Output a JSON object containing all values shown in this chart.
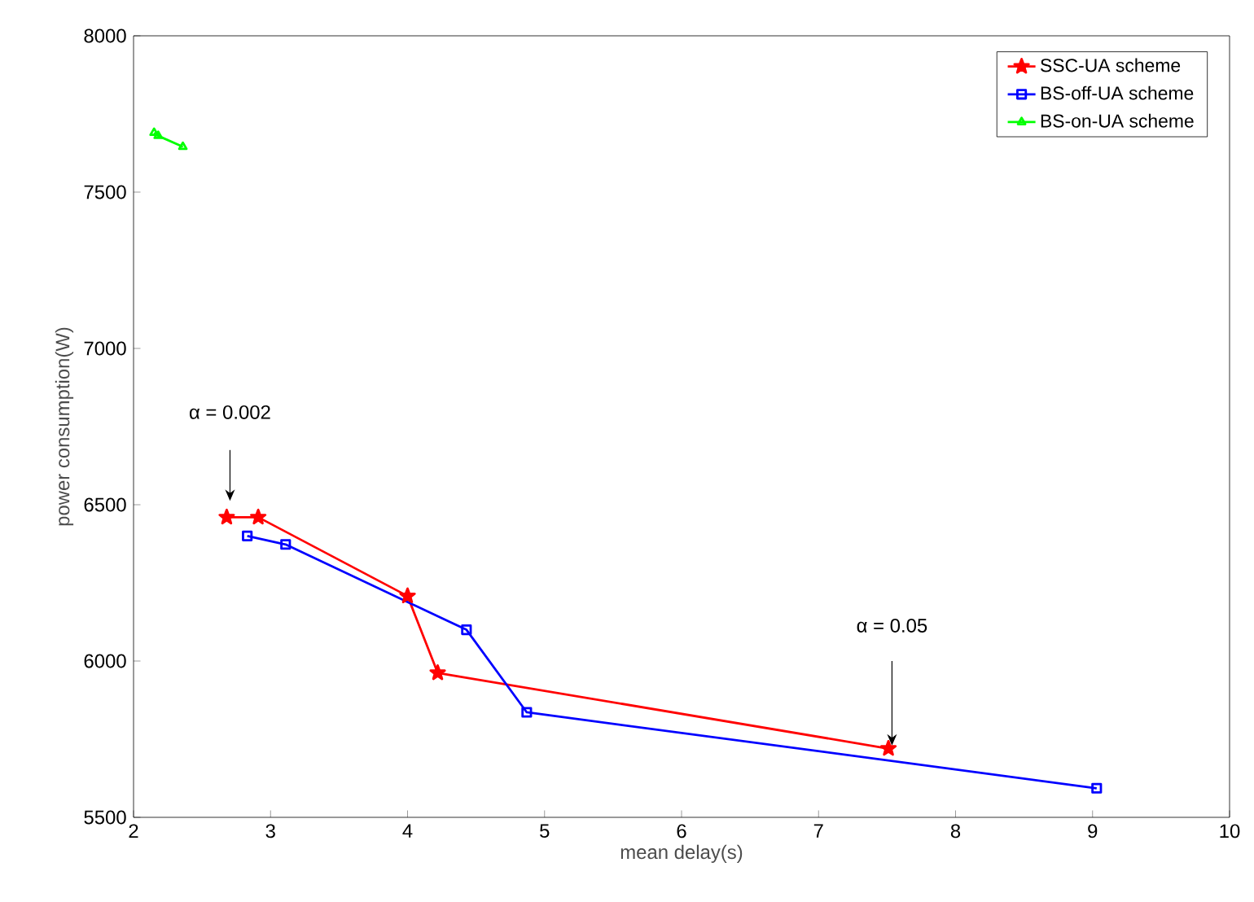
{
  "chart_data": {
    "type": "line",
    "xlabel": "mean delay(s)",
    "ylabel": "power consumption(W)",
    "xlim": [
      2,
      10
    ],
    "xticks": [
      2,
      3,
      4,
      5,
      6,
      7,
      8,
      9,
      10
    ],
    "ylim": [
      5500,
      8000
    ],
    "yticks": [
      5500,
      6000,
      6500,
      7000,
      7500,
      8000
    ],
    "grid": false,
    "legend": "top right",
    "line_style": "solid",
    "series": [
      {
        "name": "SSC-UA scheme",
        "color": "#ff0000",
        "marker": "star",
        "x": [
          2.68,
          2.91,
          4.0,
          4.22,
          7.51
        ],
        "values": [
          6460,
          6460,
          6208,
          5962,
          5720
        ]
      },
      {
        "name": "BS-off-UA scheme",
        "color": "#0000ff",
        "marker": "square",
        "x": [
          2.83,
          3.11,
          4.43,
          4.87,
          9.03
        ],
        "values": [
          6400,
          6373,
          6100,
          5836,
          5593
        ]
      },
      {
        "name": "BS-on-UA scheme",
        "color": "#00ff00",
        "marker": "triangle",
        "x": [
          2.15,
          2.18,
          2.36
        ],
        "values": [
          7690,
          7680,
          7645
        ]
      }
    ],
    "annotations": [
      "α = 0.002",
      "α = 0.05"
    ]
  }
}
